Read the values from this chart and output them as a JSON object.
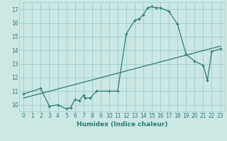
{
  "xlabel": "Humidex (Indice chaleur)",
  "bg_color": "#cce8e4",
  "grid_color": "#99cccc",
  "line_color": "#2d7a72",
  "xlim": [
    -0.5,
    23.5
  ],
  "ylim": [
    9.5,
    17.5
  ],
  "xticks": [
    0,
    1,
    2,
    3,
    4,
    5,
    6,
    7,
    8,
    9,
    10,
    11,
    12,
    13,
    14,
    15,
    16,
    17,
    18,
    19,
    20,
    21,
    22,
    23
  ],
  "yticks": [
    10,
    11,
    12,
    13,
    14,
    15,
    16,
    17
  ],
  "curve_x": [
    0,
    2,
    3,
    4,
    5,
    5.5,
    6,
    6.5,
    7,
    7.2,
    7.8,
    8.5,
    10,
    11,
    12,
    13,
    13.5,
    14,
    14.5,
    15,
    15.5,
    16,
    17,
    18,
    19,
    20,
    21,
    21.5,
    22,
    23
  ],
  "curve_y": [
    10.8,
    11.2,
    9.9,
    10.0,
    9.7,
    9.8,
    10.4,
    10.3,
    10.7,
    10.5,
    10.5,
    11.0,
    11.0,
    11.0,
    15.2,
    16.2,
    16.3,
    16.6,
    17.1,
    17.2,
    17.1,
    17.1,
    16.85,
    15.9,
    13.7,
    13.2,
    12.9,
    11.8,
    13.9,
    14.1
  ],
  "line_x": [
    0,
    23
  ],
  "line_y": [
    10.5,
    14.3
  ],
  "tick_fontsize": 5.5,
  "xlabel_fontsize": 6.5
}
